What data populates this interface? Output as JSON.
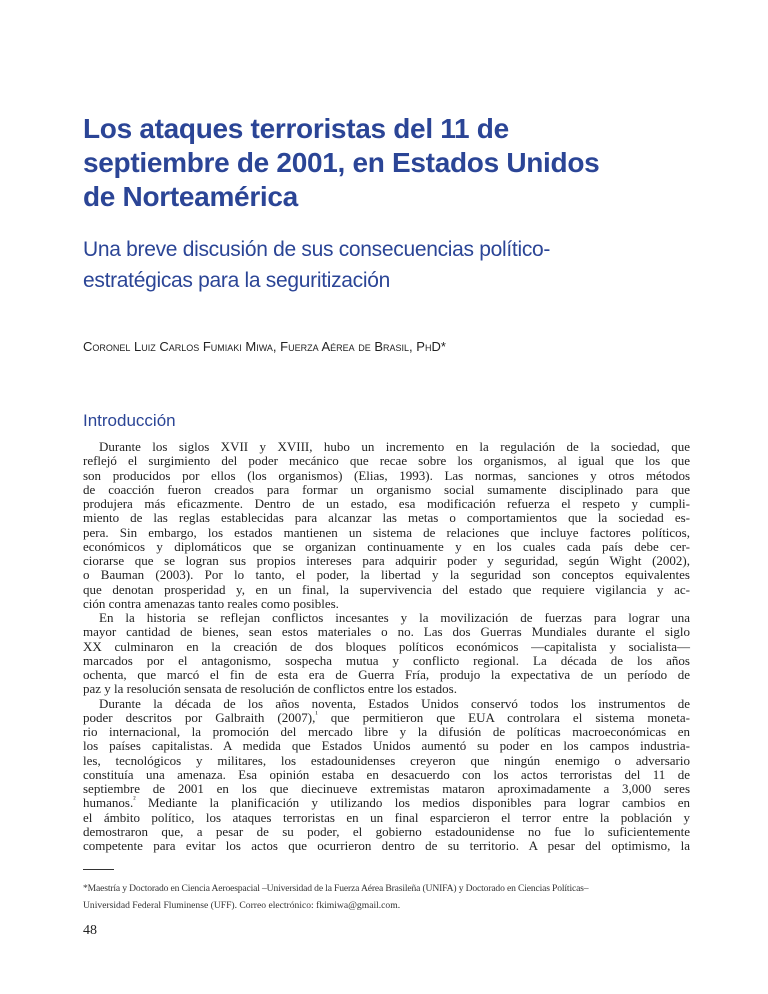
{
  "title": [
    "Los ataques terroristas del 11 de",
    "septiembre de 2001, en Estados Unidos",
    "de Norteamérica"
  ],
  "subtitle": [
    "Una breve discusión de sus consecuencias político-",
    "estratégicas para la seguritización"
  ],
  "author": "Coronel Luiz Carlos Fumiaki Miwa, Fuerza Aérea de Brasil, PhD*",
  "section": "Introducción",
  "paragraphs": [
    [
      "Durante los siglos XVII y XVIII, hubo un incremento en la regulación de la sociedad, que",
      "reflejó el surgimiento del poder mecánico que recae sobre los organismos, al igual que los que",
      "son producidos por ellos (los organismos) (Elias, 1993). Las normas, sanciones y otros métodos",
      "de coacción fueron creados para formar un organismo social sumamente disciplinado para que",
      "produjera más eficazmente. Dentro de un estado, esa modificación refuerza el respeto y cumpli-",
      "miento de las reglas establecidas para alcanzar las metas o comportamientos que la sociedad es-",
      "pera. Sin embargo, los estados mantienen un sistema de relaciones que incluye factores políticos,",
      "económicos y diplomáticos que se organizan continuamente y en los cuales cada país debe cer-",
      "ciorarse que se logran sus propios intereses para adquirir poder y seguridad, según Wight (2002),",
      "o Bauman (2003). Por lo tanto, el poder, la libertad y la seguridad son conceptos equivalentes",
      "que denotan prosperidad y, en un final, la supervivencia del estado que requiere vigilancia y ac-",
      "ción contra amenazas tanto reales como posibles."
    ],
    [
      "En la historia se reflejan conflictos incesantes y la movilización de fuerzas para lograr una",
      "mayor cantidad de bienes, sean estos materiales o no. Las dos Guerras Mundiales durante el siglo",
      "XX culminaron en la creación de dos bloques políticos económicos —capitalista y socialista—",
      "marcados por el antagonismo, sospecha mutua y conflicto regional. La década de los años",
      "ochenta, que marcó el fin de esta era de Guerra Fría, produjo la expectativa de un período de",
      "paz y la resolución sensata de resolución de conflictos entre los estados."
    ],
    [
      "Durante la década de los años noventa, Estados Unidos conservó todos los instrumentos de",
      "poder descritos por Galbraith (2007),¹ que permitieron que EUA controlara el sistema moneta-",
      "rio internacional, la promoción del mercado libre y la difusión de políticas macroeconómicas en",
      "los países capitalistas. A medida que Estados Unidos aumentó su poder en los campos industria-",
      "les, tecnológicos y militares, los estadounidenses creyeron que ningún enemigo o adversario",
      "constituía una amenaza. Esa opinión estaba en desacuerdo con los actos terroristas del 11 de",
      "septiembre de 2001 en los que diecinueve extremistas mataron aproximadamente a 3,000 seres",
      "humanos.² Mediante la planificación y utilizando los medios disponibles para lograr cambios en",
      "el ámbito político, los ataques terroristas en un final esparcieron el terror entre la población y",
      "demostraron que, a pesar de su poder, el gobierno estadounidense no fue lo suficientemente",
      "competente para evitar los actos que ocurrieron dentro de su territorio. A pesar del optimismo, la"
    ]
  ],
  "footnote": [
    "*Maestría y Doctorado en Ciencia Aeroespacial –Universidad de la Fuerza Aérea Brasileña (UNIFA) y Doctorado en Ciencias Políticas–",
    "Universidad Federal Fluminense (UFF). Correo electrónico: fkimiwa@gmail.com."
  ],
  "page_number": "48"
}
